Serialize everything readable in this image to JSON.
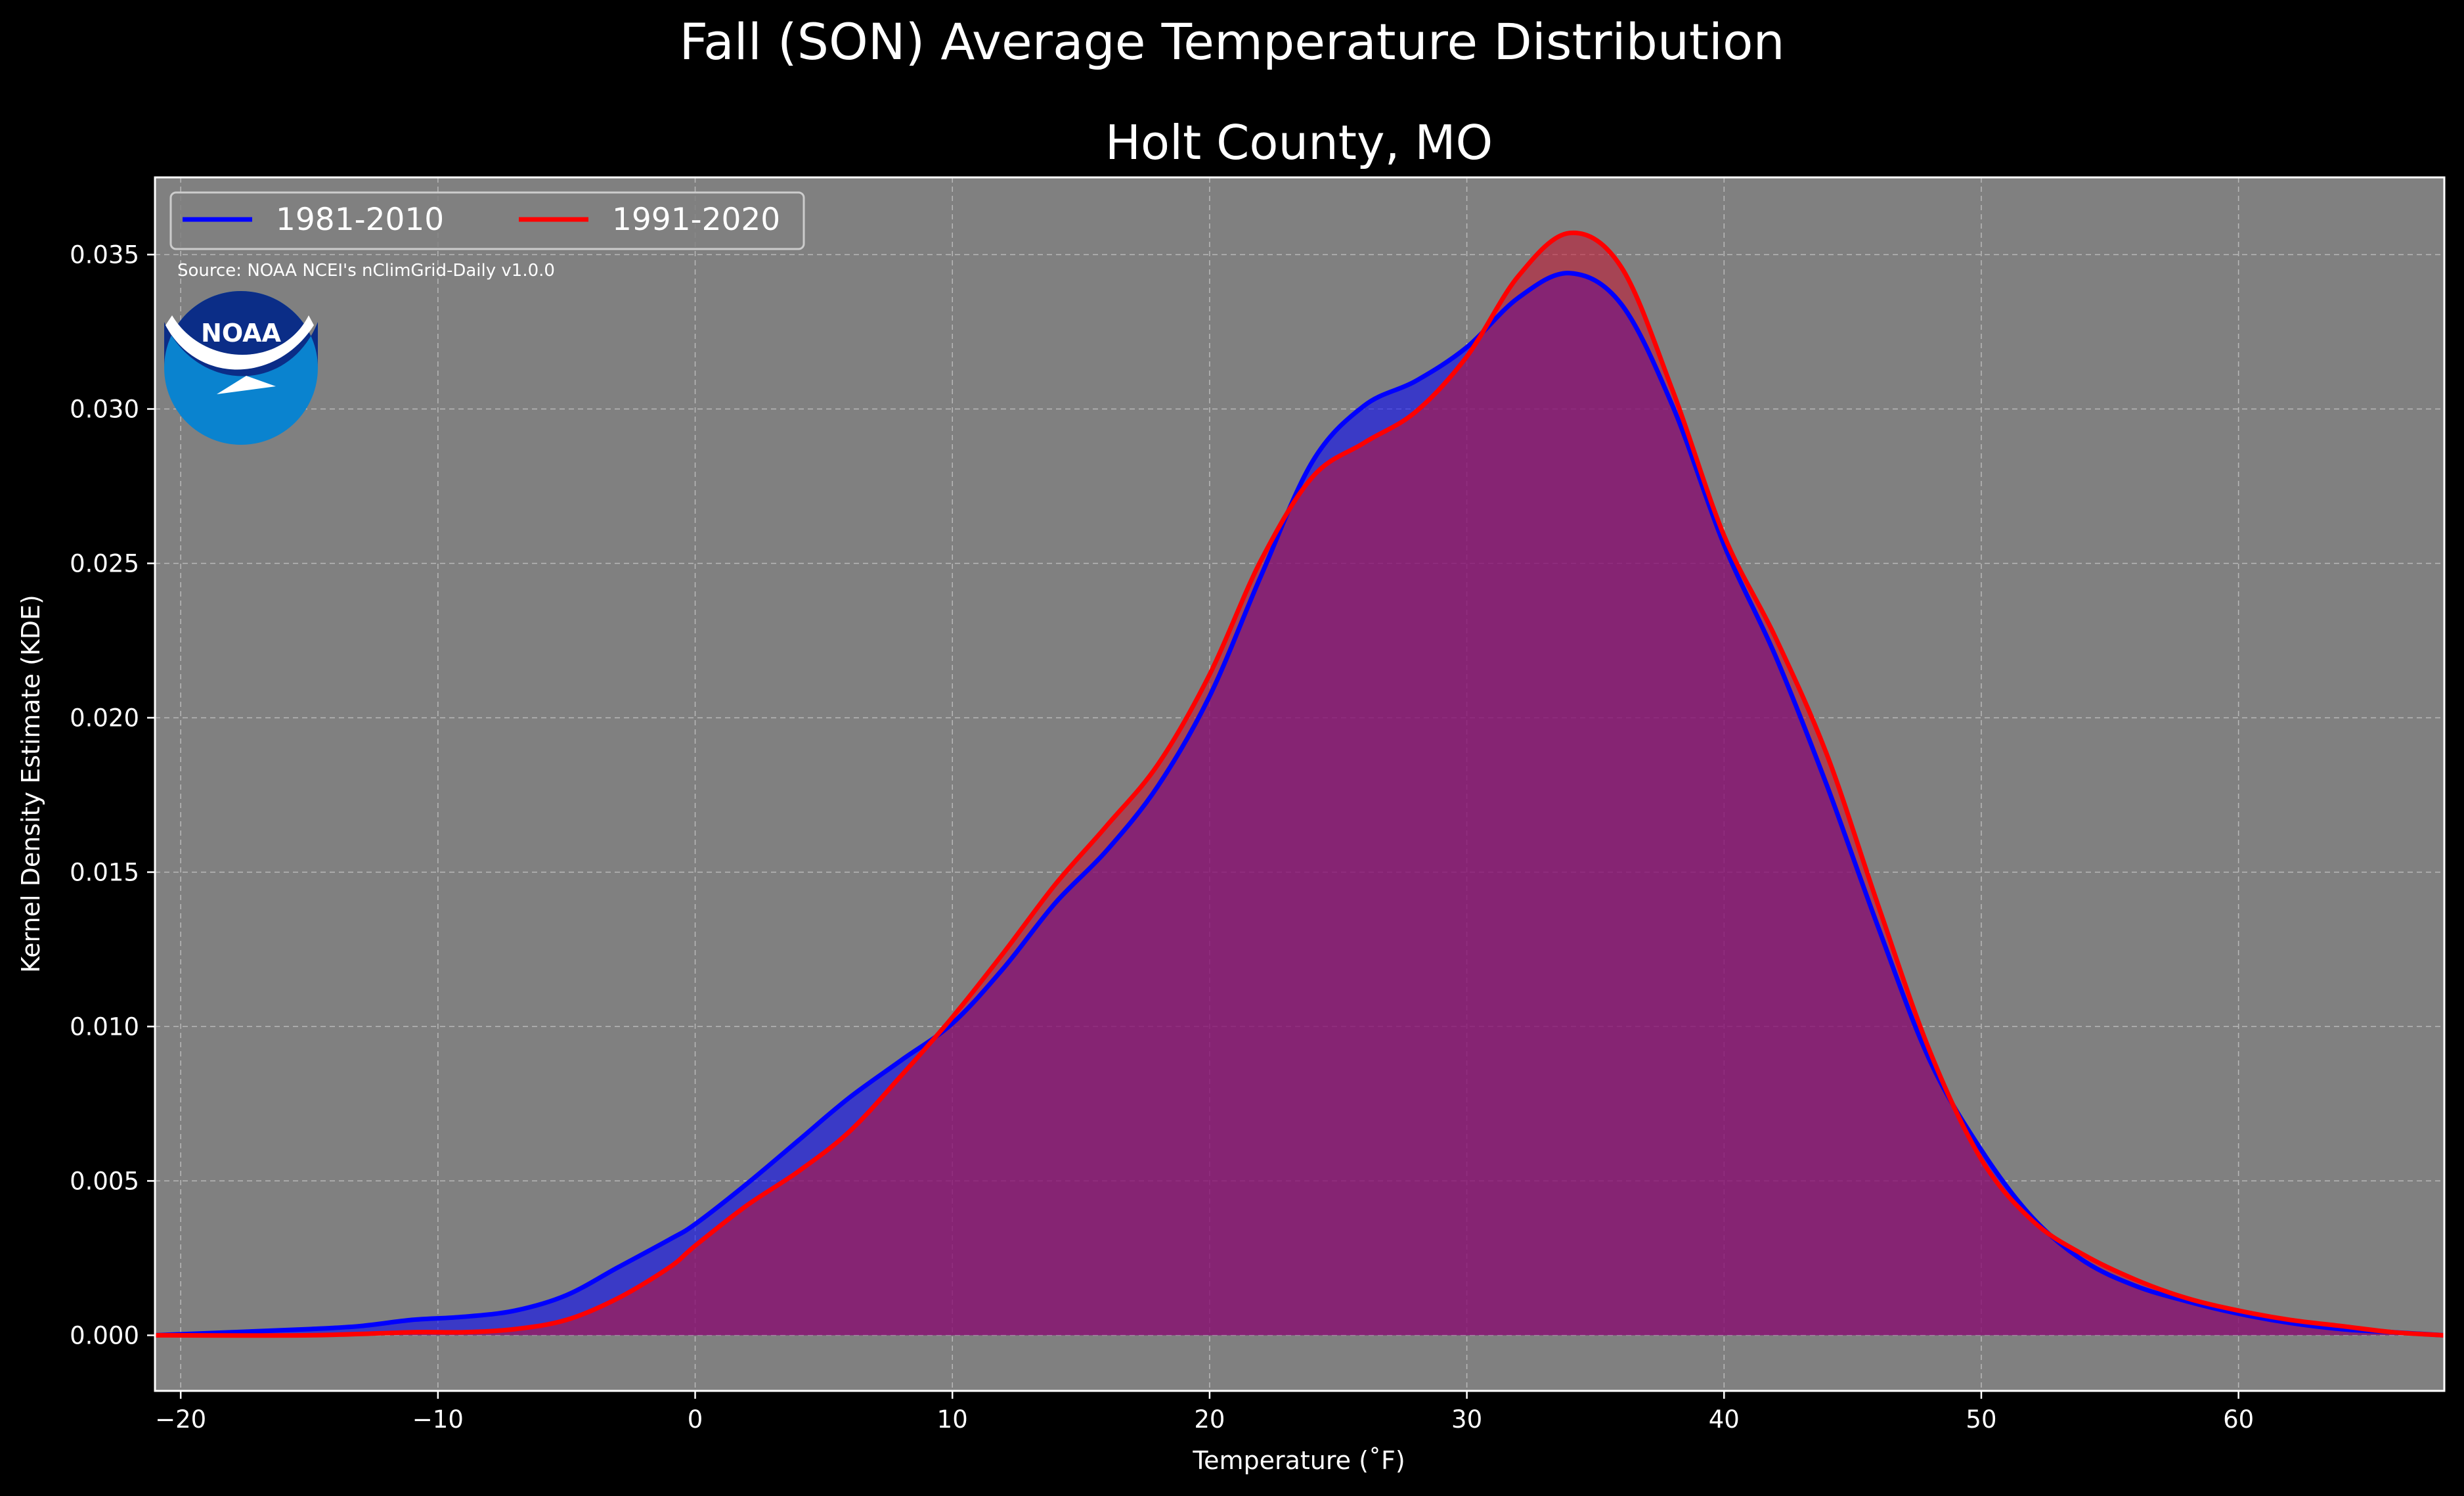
{
  "chart_data": {
    "type": "area",
    "suptitle": "Fall (SON) Average Temperature Distribution",
    "title": "Holt County, MO",
    "xlabel": "Temperature ($^\\circ$F)",
    "xlabel_display": "Temperature (˚F)",
    "ylabel": "Kernel Density Estimate (KDE)",
    "xlim": [
      -21,
      68
    ],
    "ylim": [
      -0.0018,
      0.0375
    ],
    "xticks": [
      -20,
      -10,
      0,
      10,
      20,
      30,
      40,
      50,
      60
    ],
    "xtick_labels": [
      "−20",
      "−10",
      "0",
      "10",
      "20",
      "30",
      "40",
      "50",
      "60"
    ],
    "yticks": [
      0.0,
      0.005,
      0.01,
      0.015,
      0.02,
      0.025,
      0.03,
      0.035
    ],
    "ytick_labels": [
      "0.000",
      "0.005",
      "0.010",
      "0.015",
      "0.020",
      "0.025",
      "0.030",
      "0.035"
    ],
    "grid": true,
    "legend": "upper-left",
    "background": "#808080",
    "source_note": "Source: NOAA NCEI's nClimGrid-Daily v1.0.0",
    "logo_text": "NOAA",
    "series": [
      {
        "name": "1981-2010",
        "color": "#0000ff",
        "fill": "#0000ff",
        "points": [
          [
            -21,
            0
          ],
          [
            -18,
            0.0001
          ],
          [
            -15,
            0.0002
          ],
          [
            -13,
            0.0003
          ],
          [
            -11,
            0.0005
          ],
          [
            -9,
            0.0006
          ],
          [
            -7,
            0.0008
          ],
          [
            -5,
            0.0013
          ],
          [
            -3,
            0.0022
          ],
          [
            -1,
            0.0031
          ],
          [
            0,
            0.0036
          ],
          [
            2,
            0.0049
          ],
          [
            4,
            0.0063
          ],
          [
            6,
            0.0077
          ],
          [
            8,
            0.0089
          ],
          [
            10,
            0.0101
          ],
          [
            12,
            0.0119
          ],
          [
            14,
            0.014
          ],
          [
            16,
            0.0157
          ],
          [
            18,
            0.0178
          ],
          [
            20,
            0.0207
          ],
          [
            22,
            0.0246
          ],
          [
            24,
            0.0283
          ],
          [
            26,
            0.0301
          ],
          [
            28,
            0.0309
          ],
          [
            30,
            0.032
          ],
          [
            32,
            0.0336
          ],
          [
            34,
            0.0344
          ],
          [
            36,
            0.0334
          ],
          [
            38,
            0.0301
          ],
          [
            40,
            0.0256
          ],
          [
            42,
            0.022
          ],
          [
            44,
            0.0178
          ],
          [
            46,
            0.0132
          ],
          [
            48,
            0.0089
          ],
          [
            50,
            0.006
          ],
          [
            52,
            0.0038
          ],
          [
            54,
            0.0024
          ],
          [
            56,
            0.0016
          ],
          [
            58,
            0.0011
          ],
          [
            60,
            0.0007
          ],
          [
            62,
            0.0004
          ],
          [
            64,
            0.0002
          ],
          [
            66,
            0.0001
          ],
          [
            68,
            0
          ]
        ]
      },
      {
        "name": "1991-2020",
        "color": "#ff0000",
        "fill": "#c41230",
        "points": [
          [
            -21,
            0
          ],
          [
            -15,
            0
          ],
          [
            -11,
            0.0001
          ],
          [
            -9,
            0.0001
          ],
          [
            -7,
            0.0002
          ],
          [
            -5,
            0.0005
          ],
          [
            -3,
            0.0012
          ],
          [
            -1,
            0.0022
          ],
          [
            0,
            0.0029
          ],
          [
            2,
            0.0042
          ],
          [
            4,
            0.0053
          ],
          [
            6,
            0.0066
          ],
          [
            8,
            0.0084
          ],
          [
            10,
            0.0103
          ],
          [
            12,
            0.0124
          ],
          [
            14,
            0.0146
          ],
          [
            16,
            0.0165
          ],
          [
            18,
            0.0185
          ],
          [
            20,
            0.0214
          ],
          [
            22,
            0.0251
          ],
          [
            24,
            0.0278
          ],
          [
            26,
            0.0289
          ],
          [
            28,
            0.0299
          ],
          [
            30,
            0.0317
          ],
          [
            32,
            0.0343
          ],
          [
            34,
            0.0357
          ],
          [
            36,
            0.0346
          ],
          [
            38,
            0.0306
          ],
          [
            40,
            0.0259
          ],
          [
            42,
            0.0226
          ],
          [
            44,
            0.0188
          ],
          [
            46,
            0.0139
          ],
          [
            48,
            0.0092
          ],
          [
            50,
            0.0057
          ],
          [
            52,
            0.0037
          ],
          [
            54,
            0.0026
          ],
          [
            56,
            0.0018
          ],
          [
            58,
            0.0012
          ],
          [
            60,
            0.0008
          ],
          [
            62,
            0.0005
          ],
          [
            64,
            0.0003
          ],
          [
            66,
            0.0001
          ],
          [
            68,
            0
          ]
        ]
      }
    ]
  }
}
